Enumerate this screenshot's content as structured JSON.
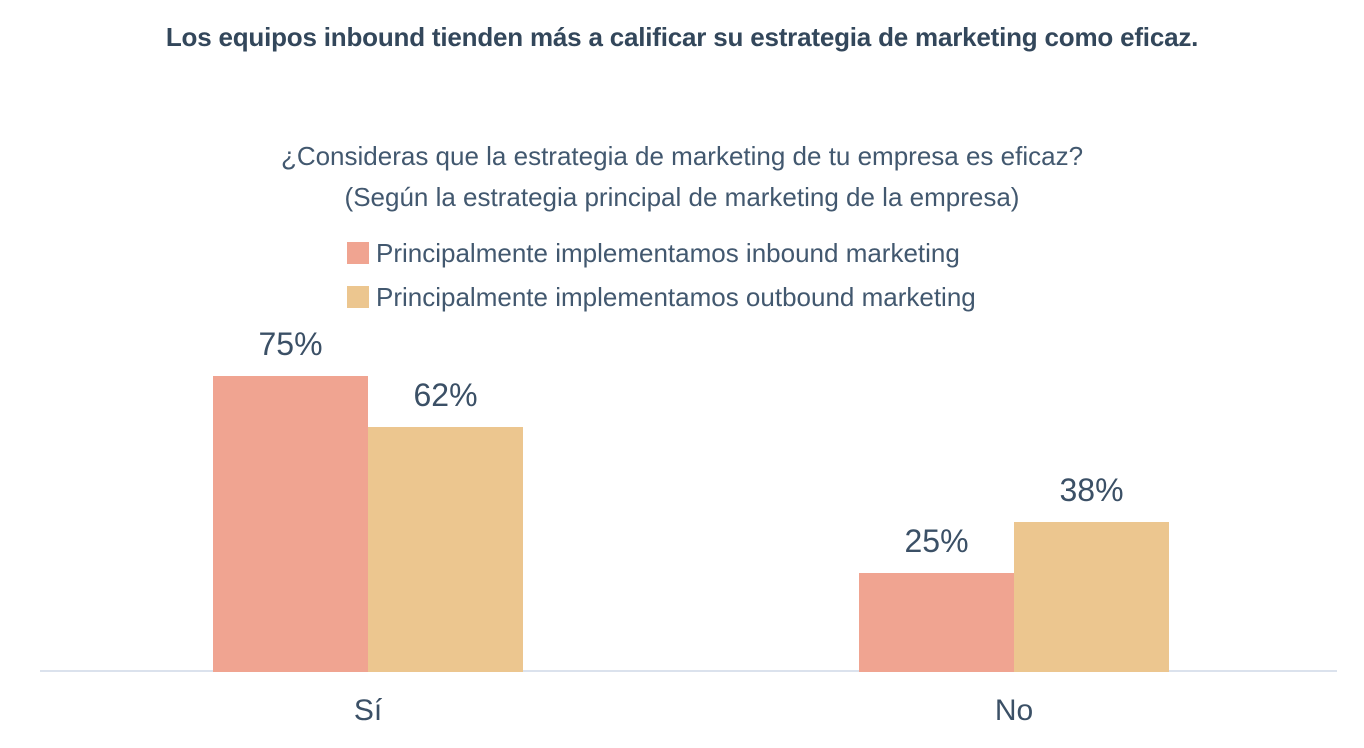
{
  "header": {
    "title": "Los equipos inbound tienden más a calificar su estrategia de marketing como eficaz."
  },
  "chart_data": {
    "type": "bar",
    "title": "¿Consideras que la estrategia de marketing de tu empresa es eficaz?",
    "subtitle": "(Según la estrategia principal de marketing de la empresa)",
    "categories": [
      "Sí",
      "No"
    ],
    "series": [
      {
        "name": "Principalmente implementamos inbound marketing",
        "color": "#f0a491",
        "values": [
          75,
          25
        ],
        "labels": [
          "75%",
          "25%"
        ]
      },
      {
        "name": "Principalmente implementamos outbound marketing",
        "color": "#ecc68f",
        "values": [
          62,
          38
        ],
        "labels": [
          "62%",
          "38%"
        ]
      }
    ],
    "unit": "%",
    "ylim": [
      0,
      100
    ],
    "grid": false,
    "legend_position": "top-left-of-plot",
    "value_labels_shown": true,
    "colors": {
      "title_text": "#33475b",
      "body_text": "#42586f",
      "axis_line": "#dbe2ed",
      "background": "#ffffff"
    }
  }
}
